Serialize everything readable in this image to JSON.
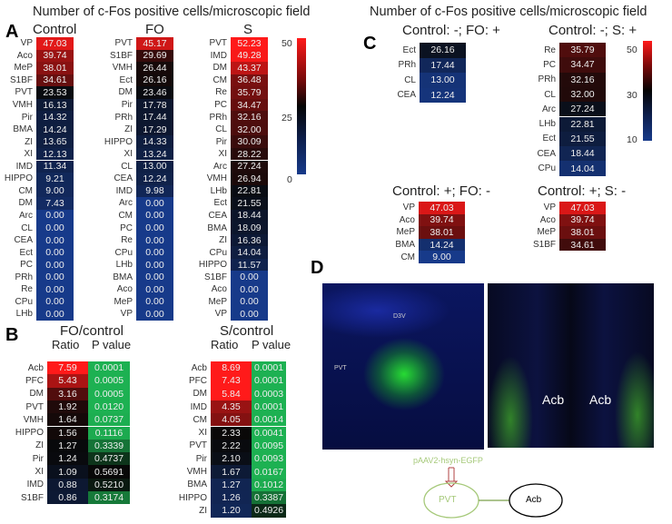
{
  "chart_data": {
    "type": "heatmap",
    "panel_a": {
      "label": "A",
      "title": "Number of c-Fos positive cells/microscopic field",
      "colorbar": {
        "ticks": [
          "50",
          "25",
          "0"
        ],
        "range": [
          0,
          50
        ]
      },
      "columns": [
        {
          "name": "Control",
          "rows": [
            [
              "VP",
              "47.03"
            ],
            [
              "Aco",
              "39.74"
            ],
            [
              "MeP",
              "38.01"
            ],
            [
              "S1BF",
              "34.61"
            ],
            [
              "PVT",
              "23.53"
            ],
            [
              "VMH",
              "16.13"
            ],
            [
              "Pir",
              "14.32"
            ],
            [
              "BMA",
              "14.24"
            ],
            [
              "ZI",
              "13.65"
            ],
            [
              "XI",
              "12.13"
            ],
            [
              "IMD",
              "11.34"
            ],
            [
              "HIPPO",
              "9.21"
            ],
            [
              "CM",
              "9.00"
            ],
            [
              "DM",
              "7.43"
            ],
            [
              "Arc",
              "0.00"
            ],
            [
              "CL",
              "0.00"
            ],
            [
              "CEA",
              "0.00"
            ],
            [
              "Ect",
              "0.00"
            ],
            [
              "PC",
              "0.00"
            ],
            [
              "PRh",
              "0.00"
            ],
            [
              "Re",
              "0.00"
            ],
            [
              "CPu",
              "0.00"
            ],
            [
              "LHb",
              "0.00"
            ]
          ]
        },
        {
          "name": "FO",
          "rows": [
            [
              "PVT",
              "45.17"
            ],
            [
              "S1BF",
              "29.69"
            ],
            [
              "VMH",
              "26.44"
            ],
            [
              "Ect",
              "26.16"
            ],
            [
              "DM",
              "23.46"
            ],
            [
              "Pir",
              "17.78"
            ],
            [
              "PRh",
              "17.44"
            ],
            [
              "ZI",
              "17.29"
            ],
            [
              "HIPPO",
              "14.33"
            ],
            [
              "XI",
              "13.24"
            ],
            [
              "CL",
              "13.00"
            ],
            [
              "CEA",
              "12.24"
            ],
            [
              "IMD",
              "9.98"
            ],
            [
              "Arc",
              "0.00"
            ],
            [
              "CM",
              "0.00"
            ],
            [
              "PC",
              "0.00"
            ],
            [
              "Re",
              "0.00"
            ],
            [
              "CPu",
              "0.00"
            ],
            [
              "LHb",
              "0.00"
            ],
            [
              "BMA",
              "0.00"
            ],
            [
              "Aco",
              "0.00"
            ],
            [
              "MeP",
              "0.00"
            ],
            [
              "VP",
              "0.00"
            ]
          ]
        },
        {
          "name": "S",
          "rows": [
            [
              "PVT",
              "52.23"
            ],
            [
              "IMD",
              "49.28"
            ],
            [
              "DM",
              "43.37"
            ],
            [
              "CM",
              "36.48"
            ],
            [
              "Re",
              "35.79"
            ],
            [
              "PC",
              "34.47"
            ],
            [
              "PRh",
              "32.16"
            ],
            [
              "CL",
              "32.00"
            ],
            [
              "Pir",
              "30.09"
            ],
            [
              "XI",
              "28.22"
            ],
            [
              "Arc",
              "27.24"
            ],
            [
              "VMH",
              "26.94"
            ],
            [
              "LHb",
              "22.81"
            ],
            [
              "Ect",
              "21.55"
            ],
            [
              "CEA",
              "18.44"
            ],
            [
              "BMA",
              "18.09"
            ],
            [
              "ZI",
              "16.36"
            ],
            [
              "CPu",
              "14.04"
            ],
            [
              "HIPPO",
              "11.57"
            ],
            [
              "S1BF",
              "0.00"
            ],
            [
              "Aco",
              "0.00"
            ],
            [
              "MeP",
              "0.00"
            ],
            [
              "VP",
              "0.00"
            ]
          ]
        }
      ]
    },
    "panel_b": {
      "label": "B",
      "ratio_header": "Ratio",
      "p_header": "P value",
      "tables": [
        {
          "title": "FO/control",
          "rows": [
            [
              "Acb",
              "7.59",
              "0.0001"
            ],
            [
              "PFC",
              "5.43",
              "0.0005"
            ],
            [
              "DM",
              "3.16",
              "0.0005"
            ],
            [
              "PVT",
              "1.92",
              "0.0120"
            ],
            [
              "VMH",
              "1.64",
              "0.0737"
            ],
            [
              "HIPPO",
              "1.56",
              "0.1116"
            ],
            [
              "ZI",
              "1.27",
              "0.3339"
            ],
            [
              "Pir",
              "1.24",
              "0.4737"
            ],
            [
              "XI",
              "1.09",
              "0.5691"
            ],
            [
              "IMD",
              "0.88",
              "0.5210"
            ],
            [
              "S1BF",
              "0.86",
              "0.3174"
            ]
          ]
        },
        {
          "title": "S/control",
          "rows": [
            [
              "Acb",
              "8.69",
              "0.0001"
            ],
            [
              "PFC",
              "7.43",
              "0.0001"
            ],
            [
              "DM",
              "5.84",
              "0.0003"
            ],
            [
              "IMD",
              "4.35",
              "0.0001"
            ],
            [
              "CM",
              "4.05",
              "0.0014"
            ],
            [
              "XI",
              "2.33",
              "0.0041"
            ],
            [
              "PVT",
              "2.22",
              "0.0095"
            ],
            [
              "Pir",
              "2.10",
              "0.0093"
            ],
            [
              "VMH",
              "1.67",
              "0.0167"
            ],
            [
              "BMA",
              "1.27",
              "0.1012"
            ],
            [
              "HIPPO",
              "1.26",
              "0.3387"
            ],
            [
              "ZI",
              "1.20",
              "0.4926"
            ]
          ]
        }
      ]
    },
    "panel_c": {
      "label": "C",
      "title": "Number of c-Fos positive cells/microscopic field",
      "colorbar": {
        "ticks": [
          "50",
          "30",
          "10"
        ],
        "range": [
          10,
          50
        ]
      },
      "tables": [
        {
          "title": "Control: -; FO: +",
          "rows": [
            [
              "Ect",
              "26.16"
            ],
            [
              "PRh",
              "17.44"
            ],
            [
              "CL",
              "13.00"
            ],
            [
              "CEA",
              "12.24"
            ]
          ]
        },
        {
          "title": "Control: -; S: +",
          "rows": [
            [
              "Re",
              "35.79"
            ],
            [
              "PC",
              "34.47"
            ],
            [
              "PRh",
              "32.16"
            ],
            [
              "CL",
              "32.00"
            ],
            [
              "Arc",
              "27.24"
            ],
            [
              "LHb",
              "22.81"
            ],
            [
              "Ect",
              "21.55"
            ],
            [
              "CEA",
              "18.44"
            ],
            [
              "CPu",
              "14.04"
            ]
          ]
        },
        {
          "title": "Control: +; FO: -",
          "rows": [
            [
              "VP",
              "47.03"
            ],
            [
              "Aco",
              "39.74"
            ],
            [
              "MeP",
              "38.01"
            ],
            [
              "BMA",
              "14.24"
            ],
            [
              "CM",
              "9.00"
            ]
          ]
        },
        {
          "title": "Control: +; S: -",
          "rows": [
            [
              "VP",
              "47.03"
            ],
            [
              "Aco",
              "39.74"
            ],
            [
              "MeP",
              "38.01"
            ],
            [
              "S1BF",
              "34.61"
            ]
          ]
        }
      ]
    },
    "panel_d": {
      "label": "D",
      "left_image_labels": [
        "D3V",
        "PVT"
      ],
      "right_image_labels": [
        "Acb",
        "Acb"
      ],
      "diagram": {
        "virus": "pAAV2-hsyn-EGFP",
        "source": "PVT",
        "target": "Acb"
      }
    },
    "colors": {
      "high": "#ff1a1a",
      "mid": "#0a0a0a",
      "low": "#173a8a",
      "p_low": "#1db152"
    }
  }
}
